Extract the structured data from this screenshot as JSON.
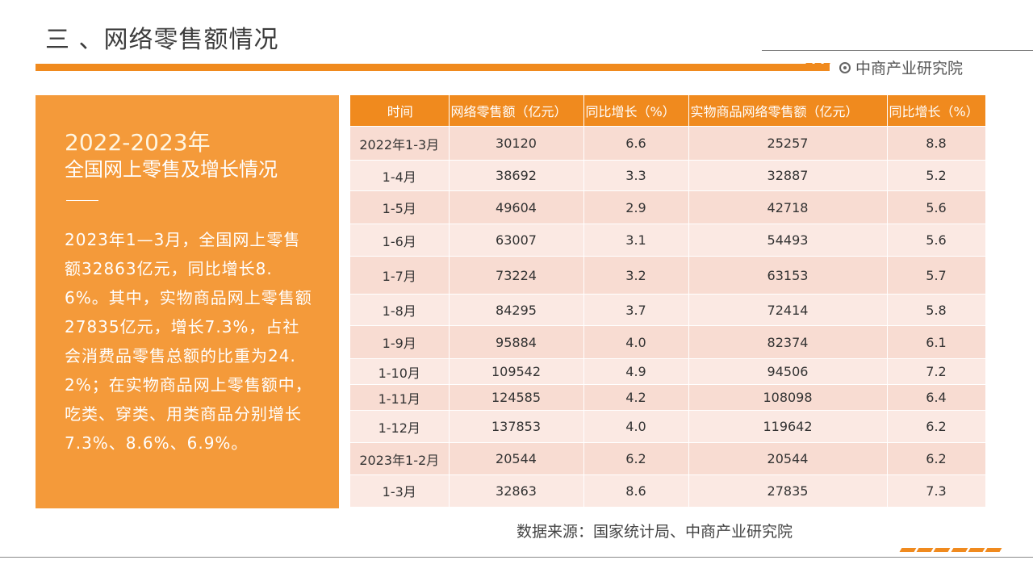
{
  "header": {
    "title": "三 、网络零售额情况",
    "brand": "中商产业研究院"
  },
  "side": {
    "year": "2022-2023年",
    "subtitle": "全国网上零售及增长情况",
    "text": "2023年1—3月，全国网上零售额32863亿元，同比增长8.6%。其中，实物商品网上零售额27835亿元，增长7.3%，占社会消费品零售总额的比重为24.2%；在实物商品网上零售额中，吃类、穿类、用类商品分别增长7.3%、8.6%、6.9%。"
  },
  "table": {
    "headers": [
      "时间",
      "网络零售额（亿元）",
      "同比增长（%）",
      "实物商品网络零售额（亿元）",
      "同比增长（%）"
    ],
    "rows": [
      [
        "2022年1-3月",
        "30120",
        "6.6",
        "25257",
        "8.8"
      ],
      [
        "1-4月",
        "38692",
        "3.3",
        "32887",
        "5.2"
      ],
      [
        "1-5月",
        "49604",
        "2.9",
        "42718",
        "5.6"
      ],
      [
        "1-6月",
        "63007",
        "3.1",
        "54493",
        "5.6"
      ],
      [
        "1-7月",
        "73224",
        "3.2",
        "63153",
        "5.7"
      ],
      [
        "1-8月",
        "84295",
        "3.7",
        "72414",
        "5.8"
      ],
      [
        "1-9月",
        "95884",
        "4.0",
        "82374",
        "6.1"
      ],
      [
        "1-10月",
        "109542",
        "4.9",
        "94506",
        "7.2"
      ],
      [
        "1-11月",
        "124585",
        "4.2",
        "108098",
        "6.4"
      ],
      [
        "1-12月",
        "137853",
        "4.0",
        "119642",
        "6.2"
      ],
      [
        "2023年1-2月",
        "20544",
        "6.2",
        "20544",
        "6.2"
      ],
      [
        "1-3月",
        "32863",
        "8.6",
        "27835",
        "7.3"
      ]
    ]
  },
  "source": "数据来源：国家统计局、中商产业研究院",
  "colors": {
    "accent": "#f08a1e",
    "panel": "#f49a3a",
    "row_odd": "#f8dcd2",
    "row_even": "#fbe9e3"
  }
}
